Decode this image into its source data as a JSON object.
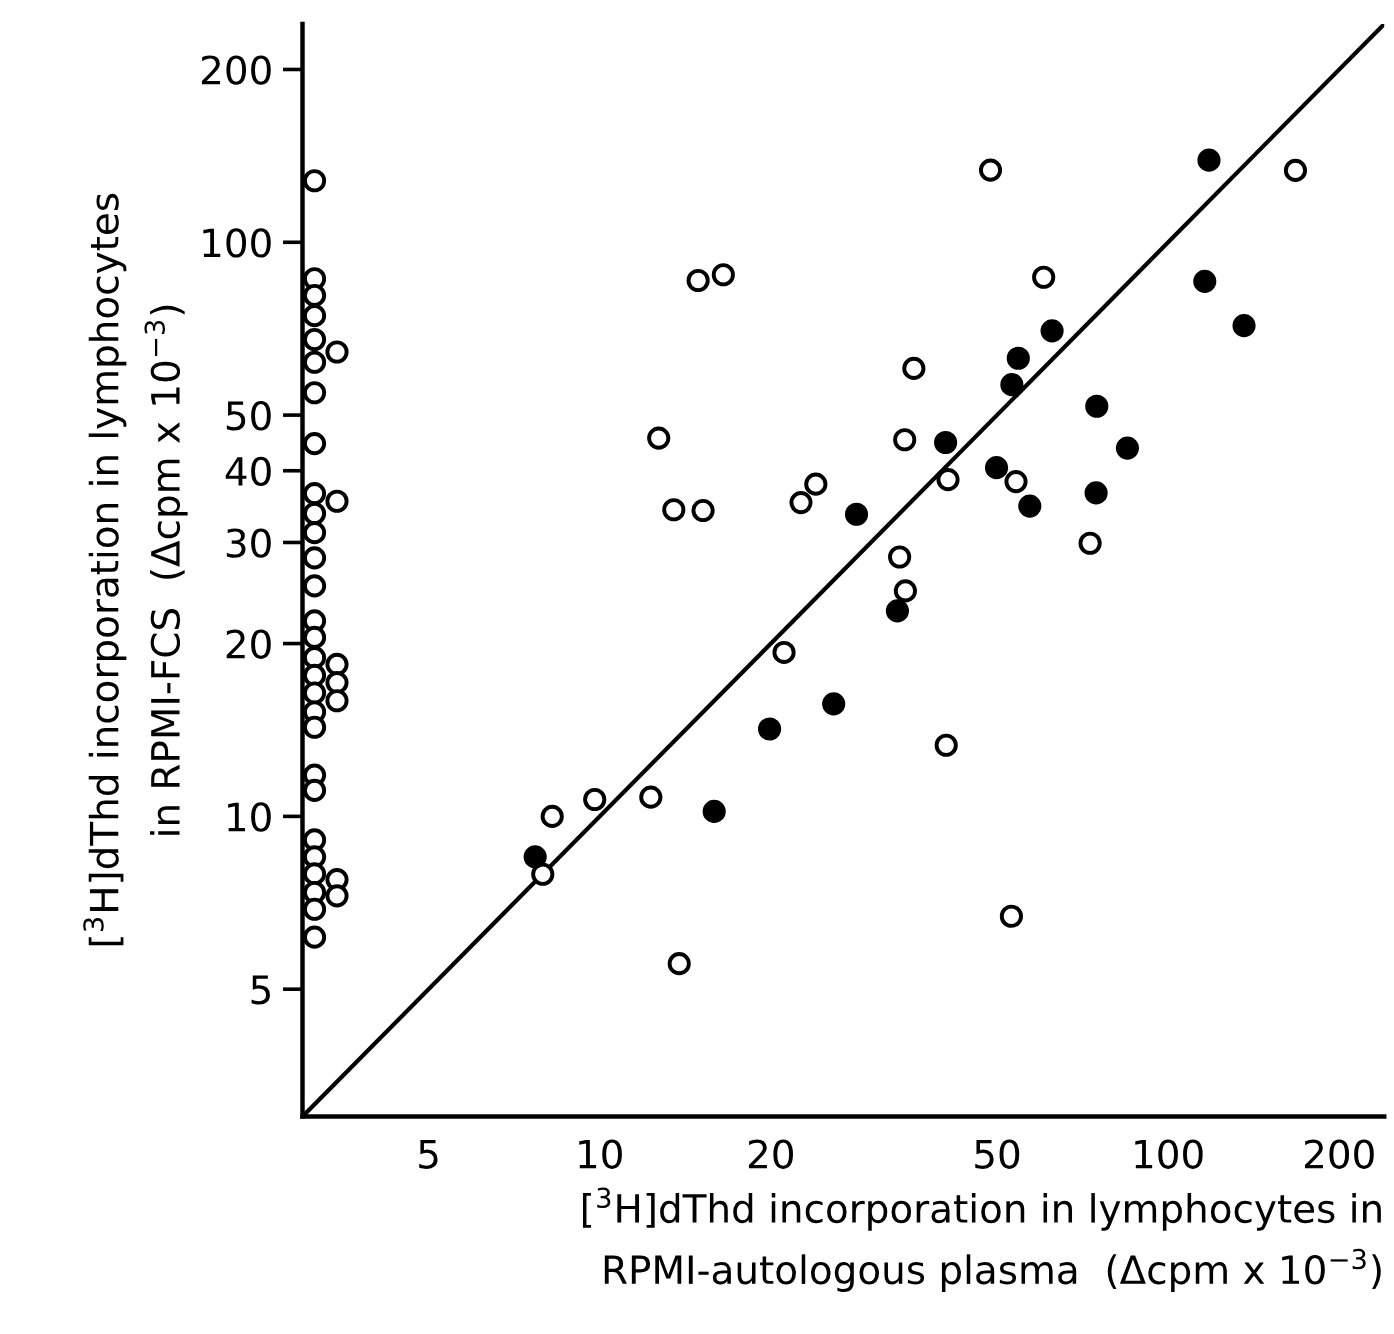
{
  "chart_data": {
    "type": "scatter",
    "xlabel": "[$^{3}$H]dThd incorporation in lymphocytes in\nRPMI-autologous plasma  (Δcpm x 10$^{−3}$)",
    "ylabel": "[$^{3}$H]dThd incorporation in lymphocytes\nin RPMI-FCS  (Δcpm x 10$^{−3}$)",
    "log": "xy",
    "xlim": [
      3,
      240
    ],
    "ylim": [
      3,
      240
    ],
    "xticks": [
      5,
      10,
      20,
      50,
      100,
      200
    ],
    "yticks": [
      5,
      10,
      20,
      30,
      40,
      50,
      100,
      200
    ],
    "grid": false,
    "legend": false,
    "marker": "circle",
    "series": [
      {
        "color": "#ffffff",
        "x": [
          3.15,
          3.15,
          3.15,
          3.15,
          3.15,
          3.15,
          3.15,
          3.15,
          3.15,
          3.15,
          3.15,
          3.15,
          3.15,
          3.15,
          3.15,
          3.15,
          3.15,
          3.15,
          3.15,
          3.15,
          3.15,
          3.15,
          3.15,
          3.15,
          3.15,
          3.15,
          3.15,
          3.15,
          3.45,
          3.45,
          3.45,
          3.45,
          3.45,
          3.45,
          3.45,
          48.7,
          167.5,
          14.9,
          16.5,
          60.4,
          35.7,
          12.7,
          34.4,
          41.0,
          54.0,
          13.5,
          15.2,
          22.6,
          24.0,
          33.7,
          34.5,
          72.9,
          21.1,
          40.7,
          9.8,
          12.3,
          8.25,
          7.94,
          13.8,
          53.0
        ],
        "values": [
          128,
          86.4,
          80.8,
          74.5,
          67.7,
          61.8,
          54.7,
          44.6,
          36.5,
          33.7,
          31.2,
          28.2,
          25.2,
          21.9,
          20.5,
          18.9,
          17.6,
          16.4,
          15.2,
          14.3,
          11.8,
          11.1,
          9.1,
          8.5,
          7.94,
          7.37,
          6.89,
          6.16,
          64.4,
          35.4,
          18.4,
          17.1,
          15.9,
          7.76,
          7.27,
          133.6,
          133.4,
          85.8,
          87.8,
          86.9,
          60.3,
          45.6,
          45.3,
          38.6,
          38.3,
          34.2,
          34.1,
          35.2,
          37.9,
          28.3,
          24.7,
          29.9,
          19.3,
          13.3,
          10.7,
          10.8,
          10.0,
          7.93,
          5.54,
          6.7
        ]
      },
      {
        "color": "#000000",
        "x": [
          118,
          116,
          136,
          62.5,
          54.5,
          53.1,
          74.9,
          84.8,
          40.6,
          49.9,
          57.1,
          74.7,
          28.3,
          33.4,
          25.8,
          19.9,
          15.9,
          7.7
        ],
        "values": [
          139,
          85.5,
          71.6,
          70.1,
          62.8,
          56.5,
          51.8,
          43.8,
          44.8,
          40.5,
          34.7,
          36.6,
          33.6,
          22.8,
          15.7,
          14.2,
          10.2,
          8.5
        ]
      },
      {
        "type": "line",
        "marker": "none",
        "color": "#000000",
        "x": [
          3,
          240
        ],
        "values": [
          3,
          240
        ]
      }
    ]
  }
}
